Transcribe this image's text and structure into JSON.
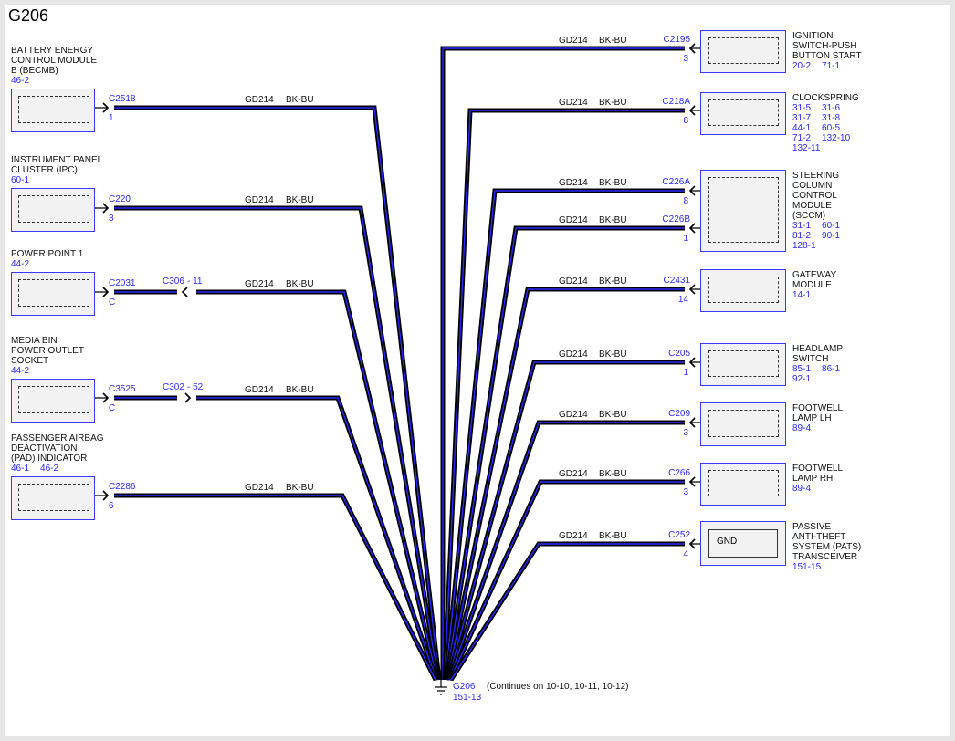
{
  "title": "G206",
  "left_components": [
    {
      "name_lines": [
        "BATTERY ENERGY",
        "CONTROL MODULE",
        "B (BECMB)"
      ],
      "refs": [
        [
          "46-2"
        ]
      ],
      "connector": "C2518",
      "pin": "1",
      "wire": {
        "circuit": "GD214",
        "color": "BK-BU"
      }
    },
    {
      "name_lines": [
        "INSTRUMENT PANEL",
        "CLUSTER (IPC)"
      ],
      "refs": [
        [
          "60-1"
        ]
      ],
      "connector": "C220",
      "pin": "3",
      "wire": {
        "circuit": "GD214",
        "color": "BK-BU"
      }
    },
    {
      "name_lines": [
        "POWER POINT 1"
      ],
      "refs": [
        [
          "44-2"
        ]
      ],
      "connector": "C2031",
      "pin": "C",
      "inline": {
        "connector": "C306",
        "pin": "- 11",
        "direction": "left"
      },
      "wire": {
        "circuit": "GD214",
        "color": "BK-BU"
      }
    },
    {
      "name_lines": [
        "MEDIA BIN",
        "POWER OUTLET",
        "SOCKET"
      ],
      "refs": [
        [
          "44-2"
        ]
      ],
      "connector": "C3525",
      "pin": "C",
      "inline": {
        "connector": "C302",
        "pin": "- 52",
        "direction": "right"
      },
      "wire": {
        "circuit": "GD214",
        "color": "BK-BU"
      }
    },
    {
      "name_lines": [
        "PASSENGER AIRBAG",
        "DEACTIVATION",
        "(PAD) INDICATOR"
      ],
      "refs": [
        [
          "46-1",
          "46-2"
        ]
      ],
      "connector": "C2286",
      "pin": "6",
      "wire": {
        "circuit": "GD214",
        "color": "BK-BU"
      }
    }
  ],
  "right_components": [
    {
      "name_lines": [
        "IGNITION",
        "SWITCH-PUSH",
        "BUTTON START"
      ],
      "refs": [
        [
          "20-2",
          "71-1"
        ]
      ],
      "connectors": [
        {
          "id": "C2195",
          "pin": "3",
          "wire": {
            "circuit": "GD214",
            "color": "BK-BU"
          }
        }
      ]
    },
    {
      "name_lines": [
        "CLOCKSPRING"
      ],
      "refs": [
        [
          "31-5",
          "31-6"
        ],
        [
          "31-7",
          "31-8"
        ],
        [
          "44-1",
          "60-5"
        ],
        [
          "71-2",
          "132-10"
        ],
        [
          "132-11"
        ]
      ],
      "connectors": [
        {
          "id": "C218A",
          "pin": "8",
          "wire": {
            "circuit": "GD214",
            "color": "BK-BU"
          }
        }
      ]
    },
    {
      "name_lines": [
        "STEERING",
        "COLUMN",
        "CONTROL",
        "MODULE",
        "(SCCM)"
      ],
      "refs": [
        [
          "31-1",
          "60-1"
        ],
        [
          "81-2",
          "90-1"
        ],
        [
          "128-1"
        ]
      ],
      "connectors": [
        {
          "id": "C226A",
          "pin": "8",
          "wire": {
            "circuit": "GD214",
            "color": "BK-BU"
          }
        },
        {
          "id": "C226B",
          "pin": "1",
          "wire": {
            "circuit": "GD214",
            "color": "BK-BU"
          }
        }
      ]
    },
    {
      "name_lines": [
        "GATEWAY",
        "MODULE"
      ],
      "refs": [
        [
          "14-1"
        ]
      ],
      "connectors": [
        {
          "id": "C2431",
          "pin": "14",
          "wire": {
            "circuit": "GD214",
            "color": "BK-BU"
          }
        }
      ]
    },
    {
      "name_lines": [
        "HEADLAMP",
        "SWITCH"
      ],
      "refs": [
        [
          "85-1",
          "86-1"
        ],
        [
          "92-1"
        ]
      ],
      "connectors": [
        {
          "id": "C205",
          "pin": "1",
          "wire": {
            "circuit": "GD214",
            "color": "BK-BU"
          }
        }
      ]
    },
    {
      "name_lines": [
        "FOOTWELL",
        "LAMP LH"
      ],
      "refs": [
        [
          "89-4"
        ]
      ],
      "connectors": [
        {
          "id": "C209",
          "pin": "3",
          "wire": {
            "circuit": "GD214",
            "color": "BK-BU"
          }
        }
      ]
    },
    {
      "name_lines": [
        "FOOTWELL",
        "LAMP RH"
      ],
      "refs": [
        [
          "89-4"
        ]
      ],
      "connectors": [
        {
          "id": "C266",
          "pin": "3",
          "wire": {
            "circuit": "GD214",
            "color": "BK-BU"
          }
        }
      ]
    },
    {
      "name_lines": [
        "PASSIVE",
        "ANTI-THEFT",
        "SYSTEM (PATS)",
        "TRANSCEIVER"
      ],
      "refs": [
        [
          "151-15"
        ]
      ],
      "box_text": "GND",
      "connectors": [
        {
          "id": "C252",
          "pin": "4",
          "wire": {
            "circuit": "GD214",
            "color": "BK-BU"
          }
        }
      ]
    }
  ],
  "ground": {
    "label": "G206",
    "ref": "151-13",
    "note": "(Continues on 10-10, 10-11, 10-12)"
  },
  "colors": {
    "wire_outer": "#000000",
    "wire_inner": "#2a2aff",
    "ref_text": "#2a2aff",
    "box_border": "#3a3aff"
  }
}
